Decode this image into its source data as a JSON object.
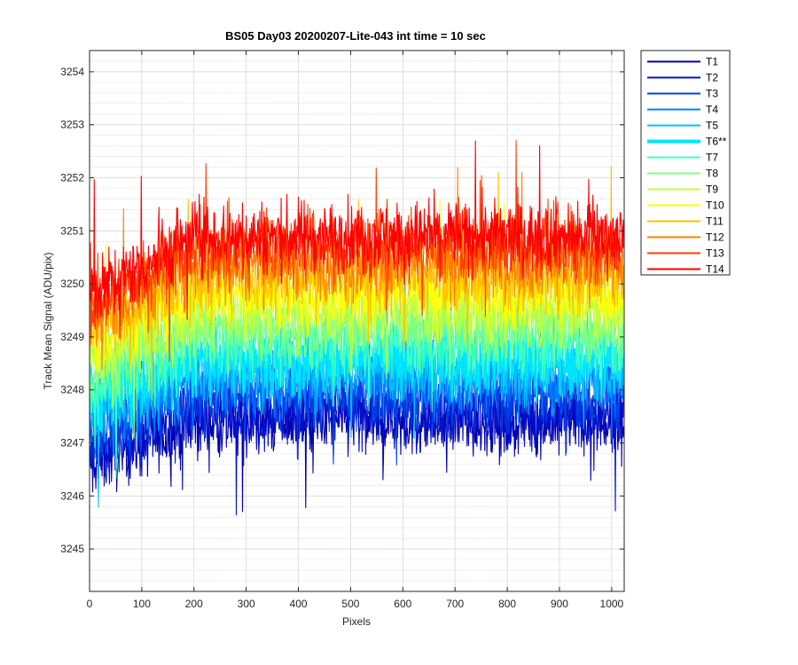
{
  "chart_data": {
    "type": "line",
    "title": "BS05 Day03 20200207-Lite-043 int time = 10 sec",
    "xlabel": "Pixels",
    "ylabel": "Track Mean Signal (ADU/pix)",
    "xlim": [
      0,
      1024
    ],
    "ylim": [
      3244.2,
      3254.4
    ],
    "xticks": [
      0,
      100,
      200,
      300,
      400,
      500,
      600,
      700,
      800,
      900,
      1000
    ],
    "yticks": [
      3245,
      3246,
      3247,
      3248,
      3249,
      3250,
      3251,
      3252,
      3253,
      3254
    ],
    "grid": true,
    "minor_grid": true,
    "legend_location": "outside-right",
    "n_points": 1024,
    "series": [
      {
        "name": "T1",
        "color": "#0000AA",
        "mean_start": 3246.6,
        "mean_mid": 3247.4,
        "spread": 0.85,
        "highlight": false
      },
      {
        "name": "T2",
        "color": "#0010CC",
        "mean_start": 3246.9,
        "mean_mid": 3247.6,
        "spread": 0.85,
        "highlight": false
      },
      {
        "name": "T3",
        "color": "#0040E8",
        "mean_start": 3247.1,
        "mean_mid": 3247.9,
        "spread": 0.85,
        "highlight": false
      },
      {
        "name": "T4",
        "color": "#0080FF",
        "mean_start": 3247.4,
        "mean_mid": 3248.2,
        "spread": 0.85,
        "highlight": false
      },
      {
        "name": "T5",
        "color": "#00BFFF",
        "mean_start": 3247.6,
        "mean_mid": 3248.4,
        "spread": 0.85,
        "highlight": false
      },
      {
        "name": "T6**",
        "color": "#00E5FF",
        "mean_start": 3247.8,
        "mean_mid": 3248.6,
        "spread": 0.85,
        "highlight": true
      },
      {
        "name": "T7",
        "color": "#40FFC0",
        "mean_start": 3248.0,
        "mean_mid": 3248.9,
        "spread": 0.85,
        "highlight": false
      },
      {
        "name": "T8",
        "color": "#80FF80",
        "mean_start": 3248.3,
        "mean_mid": 3249.2,
        "spread": 0.85,
        "highlight": false
      },
      {
        "name": "T9",
        "color": "#C0FF40",
        "mean_start": 3248.6,
        "mean_mid": 3249.5,
        "spread": 0.85,
        "highlight": false
      },
      {
        "name": "T10",
        "color": "#FFFF00",
        "mean_start": 3248.9,
        "mean_mid": 3249.8,
        "spread": 0.85,
        "highlight": false
      },
      {
        "name": "T11",
        "color": "#FFC000",
        "mean_start": 3249.1,
        "mean_mid": 3250.1,
        "spread": 0.85,
        "highlight": false
      },
      {
        "name": "T12",
        "color": "#FF8000",
        "mean_start": 3249.4,
        "mean_mid": 3250.4,
        "spread": 0.85,
        "highlight": false
      },
      {
        "name": "T13",
        "color": "#FF4000",
        "mean_start": 3249.6,
        "mean_mid": 3250.7,
        "spread": 0.85,
        "highlight": false
      },
      {
        "name": "T14",
        "color": "#FF0000",
        "mean_start": 3249.8,
        "mean_mid": 3250.9,
        "spread": 0.85,
        "highlight": false
      }
    ]
  }
}
